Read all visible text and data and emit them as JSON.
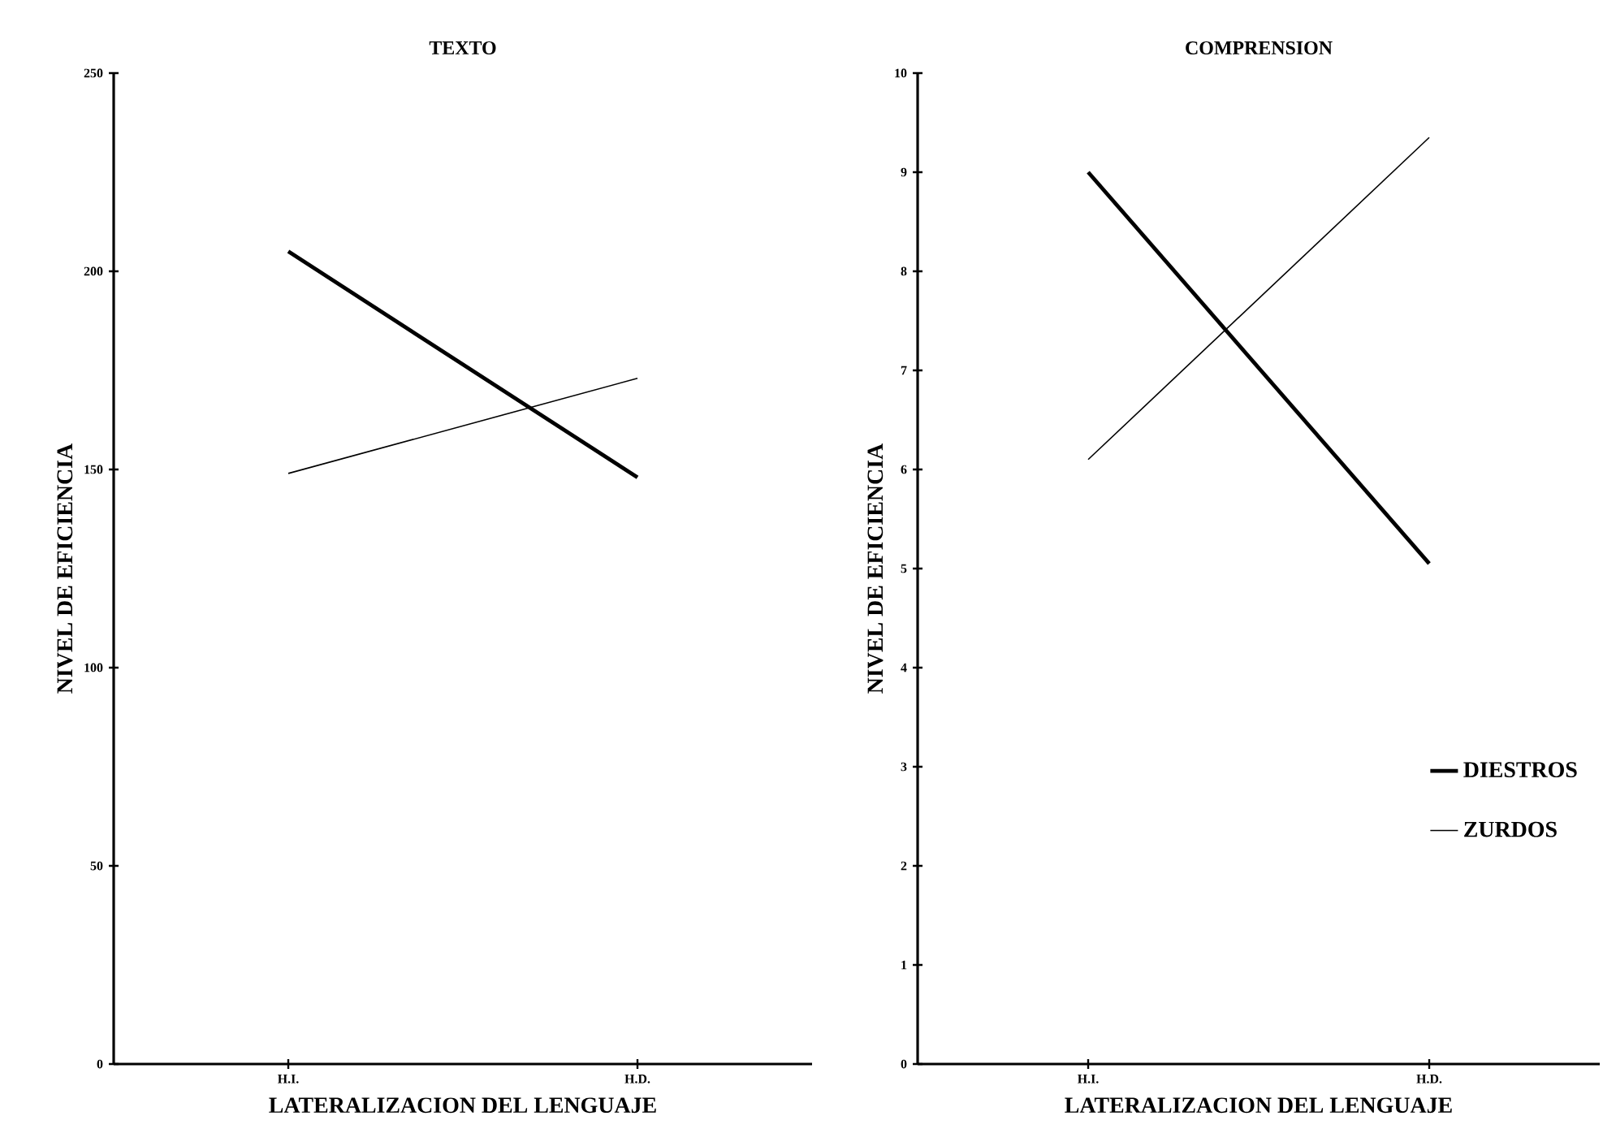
{
  "chart_data": [
    {
      "type": "line",
      "title": "TEXTO",
      "xlabel": "LATERALIZACION DEL LENGUAJE",
      "ylabel": "NIVEL DE EFICIENCIA",
      "categories": [
        "H.I.",
        "H.D."
      ],
      "ylim": [
        0,
        250
      ],
      "yticks": [
        0,
        50,
        100,
        150,
        200,
        250
      ],
      "marker": "none",
      "line_style": "solid",
      "series": [
        {
          "color": "#000000",
          "values": [
            205,
            148
          ]
        },
        {
          "color": "#000000",
          "values": [
            149,
            173
          ]
        }
      ]
    },
    {
      "type": "line",
      "title": "COMPRENSION",
      "xlabel": "LATERALIZACION DEL LENGUAJE",
      "ylabel": "NIVEL DE EFICIENCIA",
      "categories": [
        "H.I.",
        "H.D."
      ],
      "ylim": [
        0,
        10
      ],
      "yticks": [
        0,
        1,
        2,
        3,
        4,
        5,
        6,
        7,
        8,
        9,
        10
      ],
      "legend": "bottom right",
      "marker": "none",
      "line_style": "solid",
      "series": [
        {
          "name": "DIESTROS",
          "color": "#000000",
          "values": [
            9.0,
            5.05
          ]
        },
        {
          "name": "ZURDOS",
          "color": "#000000",
          "values": [
            6.1,
            9.35
          ]
        }
      ]
    }
  ]
}
